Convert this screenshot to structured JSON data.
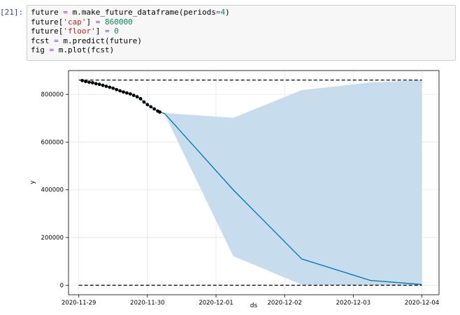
{
  "cell": {
    "prompt": "[21]:",
    "lines": [
      [
        {
          "t": "future ",
          "c": "plain"
        },
        {
          "t": "=",
          "c": "op"
        },
        {
          "t": " m.make_future_dataframe(periods",
          "c": "plain"
        },
        {
          "t": "=",
          "c": "op"
        },
        {
          "t": "4",
          "c": "num"
        },
        {
          "t": ")",
          "c": "plain"
        }
      ],
      [
        {
          "t": "future[",
          "c": "plain"
        },
        {
          "t": "'cap'",
          "c": "str"
        },
        {
          "t": "] ",
          "c": "plain"
        },
        {
          "t": "=",
          "c": "op"
        },
        {
          "t": " ",
          "c": "plain"
        },
        {
          "t": "860000",
          "c": "num"
        }
      ],
      [
        {
          "t": "future[",
          "c": "plain"
        },
        {
          "t": "'floor'",
          "c": "str"
        },
        {
          "t": "] ",
          "c": "plain"
        },
        {
          "t": "=",
          "c": "op"
        },
        {
          "t": " ",
          "c": "plain"
        },
        {
          "t": "0",
          "c": "num"
        }
      ],
      [
        {
          "t": "fcst ",
          "c": "plain"
        },
        {
          "t": "=",
          "c": "op"
        },
        {
          "t": " m.predict(future)",
          "c": "plain"
        }
      ],
      [
        {
          "t": "fig ",
          "c": "plain"
        },
        {
          "t": "=",
          "c": "op"
        },
        {
          "t": " m.plot(fcst)",
          "c": "plain"
        }
      ]
    ]
  },
  "chart_data": {
    "type": "line",
    "xlabel": "ds",
    "ylabel": "y",
    "x_tick_labels": [
      "2020-11-29",
      "2020-11-30",
      "2020-12-01",
      "2020-12-02",
      "2020-12-03",
      "2020-12-04"
    ],
    "y_tick_labels": [
      "0",
      "200000",
      "400000",
      "600000",
      "800000"
    ],
    "y_ticks": [
      0,
      200000,
      400000,
      600000,
      800000
    ],
    "xlim_days": [
      -0.15,
      5.25
    ],
    "ylim": [
      -40000,
      900000
    ],
    "grid": true,
    "cap": 860000,
    "floor": 0,
    "observed": [
      [
        0.05,
        858000
      ],
      [
        0.1,
        854000
      ],
      [
        0.15,
        851000
      ],
      [
        0.2,
        849000
      ],
      [
        0.25,
        845000
      ],
      [
        0.3,
        842000
      ],
      [
        0.35,
        838000
      ],
      [
        0.4,
        834000
      ],
      [
        0.45,
        830000
      ],
      [
        0.5,
        826000
      ],
      [
        0.55,
        820000
      ],
      [
        0.6,
        815000
      ],
      [
        0.65,
        810000
      ],
      [
        0.7,
        806000
      ],
      [
        0.75,
        802000
      ],
      [
        0.8,
        796000
      ],
      [
        0.85,
        790000
      ],
      [
        0.9,
        782000
      ],
      [
        0.95,
        768000
      ],
      [
        1.0,
        757000
      ],
      [
        1.05,
        748000
      ],
      [
        1.1,
        739000
      ],
      [
        1.15,
        730000
      ],
      [
        1.18,
        726000
      ]
    ],
    "forecast": [
      [
        1.25,
        720000
      ],
      [
        2.25,
        400000
      ],
      [
        3.25,
        110000
      ],
      [
        4.25,
        20000
      ],
      [
        5.0,
        3000
      ]
    ],
    "interval_upper": [
      [
        1.25,
        722000
      ],
      [
        2.25,
        702000
      ],
      [
        3.25,
        818000
      ],
      [
        4.25,
        850000
      ],
      [
        5.0,
        860000
      ]
    ],
    "interval_lower": [
      [
        1.25,
        718000
      ],
      [
        2.25,
        122000
      ],
      [
        3.25,
        2000
      ],
      [
        4.25,
        0
      ],
      [
        5.0,
        0
      ]
    ],
    "colors": {
      "forecast": "#0072b2",
      "interval": "#c7dcec",
      "observed": "#000000",
      "grid": "#e5e5e5",
      "limits": "#000000"
    }
  }
}
